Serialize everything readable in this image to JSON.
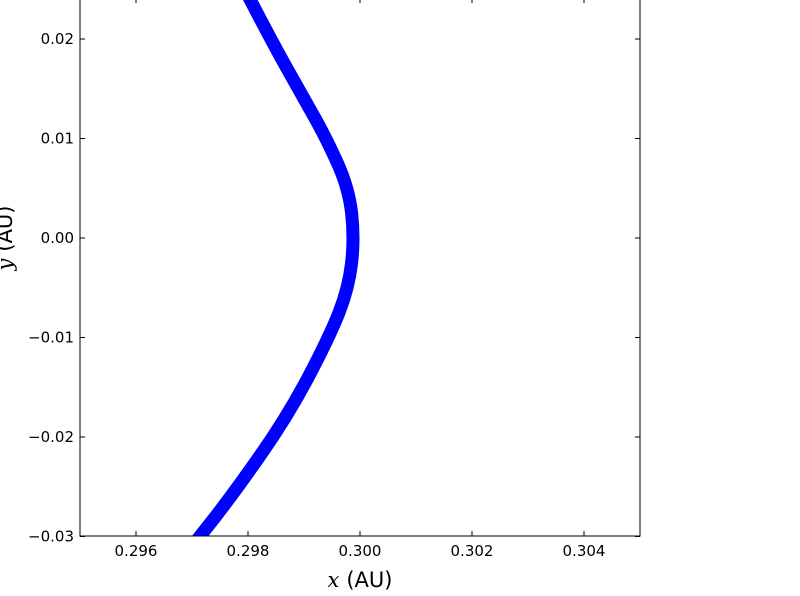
{
  "chart_data": {
    "type": "line",
    "title": "",
    "xlabel": {
      "var": "x",
      "unit": "(AU)"
    },
    "ylabel": {
      "var": "y",
      "unit": "(AU)"
    },
    "xlim": [
      0.295,
      0.305
    ],
    "ylim": [
      -0.03,
      0.025
    ],
    "x_ticks": [
      {
        "value": 0.296,
        "label": "0.296"
      },
      {
        "value": 0.298,
        "label": "0.298"
      },
      {
        "value": 0.3,
        "label": "0.300"
      },
      {
        "value": 0.302,
        "label": "0.302"
      },
      {
        "value": 0.304,
        "label": "0.304"
      }
    ],
    "y_ticks": [
      {
        "value": 0.02,
        "label": "0.02"
      },
      {
        "value": 0.01,
        "label": "0.01"
      },
      {
        "value": 0.0,
        "label": "0.00"
      },
      {
        "value": -0.01,
        "label": "−0.01"
      },
      {
        "value": -0.02,
        "label": "−0.02"
      },
      {
        "value": -0.03,
        "label": "−0.03"
      }
    ],
    "grid": false,
    "series": [
      {
        "color": "#0000ff",
        "points": [
          {
            "x": 0.29785,
            "y": 0.026
          },
          {
            "x": 0.2984,
            "y": 0.02
          },
          {
            "x": 0.299,
            "y": 0.014
          },
          {
            "x": 0.2994,
            "y": 0.01
          },
          {
            "x": 0.2998,
            "y": 0.005
          },
          {
            "x": 0.2999,
            "y": 0.0
          },
          {
            "x": 0.2998,
            "y": -0.005
          },
          {
            "x": 0.29945,
            "y": -0.01
          },
          {
            "x": 0.2987,
            "y": -0.018
          },
          {
            "x": 0.2977,
            "y": -0.026
          },
          {
            "x": 0.297,
            "y": -0.031
          }
        ]
      }
    ]
  }
}
